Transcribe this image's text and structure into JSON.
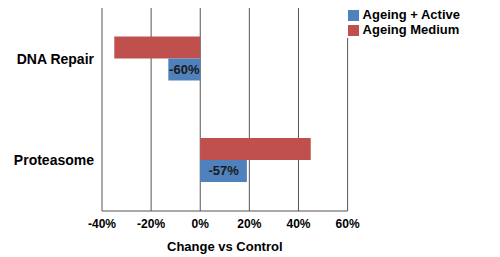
{
  "chart_data": {
    "type": "bar",
    "orientation": "horizontal",
    "categories": [
      "DNA Repair",
      "Proteasome"
    ],
    "series": [
      {
        "name": "Ageing Medium",
        "color": "#c0504d",
        "values": [
          -35,
          45
        ]
      },
      {
        "name": "Ageing + Active",
        "color": "#4f81bd",
        "values": [
          -13,
          19
        ]
      }
    ],
    "x_label": "Change vs Control",
    "xlim": [
      -40,
      60
    ],
    "xticks": [
      {
        "value": -40,
        "label": "-40%"
      },
      {
        "value": -20,
        "label": "-20%"
      },
      {
        "value": 0,
        "label": "0%"
      },
      {
        "value": 20,
        "label": "20%"
      },
      {
        "value": 40,
        "label": "40%"
      },
      {
        "value": 60,
        "label": "60%"
      }
    ],
    "grid": true,
    "legend": "upper right",
    "annotations": [
      {
        "category": "DNA Repair",
        "series": "Ageing + Active",
        "text": "-60%"
      },
      {
        "category": "Proteasome",
        "series": "Ageing + Active",
        "text": "-57%"
      }
    ]
  }
}
